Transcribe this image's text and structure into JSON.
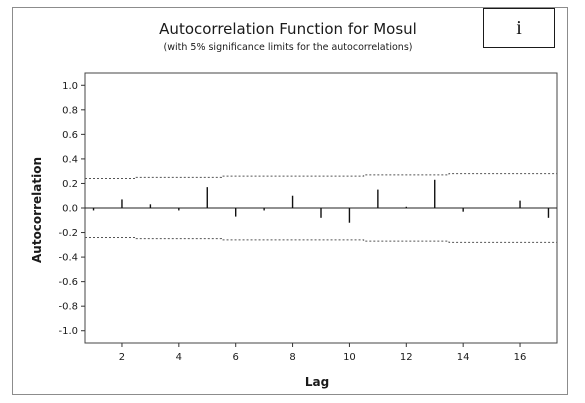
{
  "panel_label": "i",
  "chart_data": {
    "type": "bar",
    "title": "Autocorrelation Function for Mosul",
    "subtitle": "(with 5% significance limits for the autocorrelations)",
    "xlabel": "Lag",
    "ylabel": "Autocorrelation",
    "xlim": [
      0.7,
      17.3
    ],
    "ylim": [
      -1.1,
      1.1
    ],
    "xticks": [
      "2",
      "4",
      "6",
      "8",
      "10",
      "12",
      "14",
      "16"
    ],
    "yticks": [
      "1.0",
      "0.8",
      "0.6",
      "0.4",
      "0.2",
      "0.0",
      "-0.2",
      "-0.4",
      "-0.6",
      "-0.8",
      "-1.0"
    ],
    "lags": [
      1,
      2,
      3,
      4,
      5,
      6,
      7,
      8,
      9,
      10,
      11,
      12,
      13,
      14,
      15,
      16,
      17
    ],
    "values": [
      -0.02,
      0.07,
      0.03,
      -0.02,
      0.17,
      -0.07,
      -0.02,
      0.1,
      -0.08,
      -0.12,
      0.15,
      0.01,
      0.23,
      -0.03,
      0.0,
      0.06,
      -0.08
    ],
    "significance_upper": [
      0.24,
      0.24,
      0.25,
      0.25,
      0.25,
      0.26,
      0.26,
      0.26,
      0.26,
      0.26,
      0.27,
      0.27,
      0.27,
      0.28,
      0.28,
      0.28,
      0.28
    ],
    "significance_lower": [
      -0.24,
      -0.24,
      -0.25,
      -0.25,
      -0.25,
      -0.26,
      -0.26,
      -0.26,
      -0.26,
      -0.26,
      -0.27,
      -0.27,
      -0.27,
      -0.28,
      -0.28,
      -0.28,
      -0.28
    ],
    "grid": false,
    "legend": "none"
  }
}
